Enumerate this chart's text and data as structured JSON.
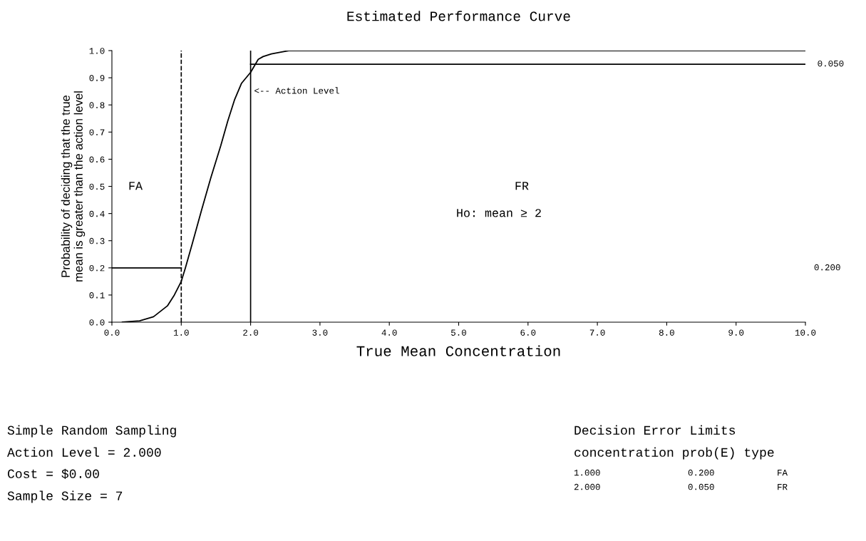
{
  "chart_data": {
    "type": "line",
    "title": "Estimated Performance Curve",
    "xlabel": "True Mean Concentration",
    "ylabel": "Probability of deciding that the true\nmean is greater than the action level",
    "series": [
      {
        "color": "#000000",
        "x": [
          0.15,
          0.4,
          0.6,
          0.8,
          0.9,
          1.0,
          1.06,
          1.16,
          1.29,
          1.43,
          1.57,
          1.67,
          1.77,
          1.87,
          2.0,
          2.11,
          2.18,
          2.3,
          2.45,
          2.55,
          3.0,
          10.0
        ],
        "values": [
          0.0,
          0.005,
          0.02,
          0.06,
          0.1,
          0.15,
          0.2,
          0.29,
          0.41,
          0.535,
          0.65,
          0.74,
          0.82,
          0.88,
          0.92,
          0.968,
          0.978,
          0.988,
          0.995,
          1.0,
          1.0,
          1.0
        ]
      },
      {
        "color": "#000000",
        "x": [
          0,
          1
        ],
        "values": [
          0.2,
          0.2
        ]
      },
      {
        "color": "#000000",
        "x": [
          2,
          10
        ],
        "values": [
          0.95,
          0.95
        ]
      }
    ],
    "ref_lines": [
      {
        "axis": "x",
        "value": 1,
        "line_style": "dashed",
        "color": "#000000"
      },
      {
        "axis": "x",
        "value": 2,
        "line_style": "solid",
        "color": "#000000"
      }
    ],
    "xlim": [
      0,
      10
    ],
    "ylim": [
      0,
      1
    ],
    "xticks": [
      {
        "value": 0,
        "label": "0.0"
      },
      {
        "value": 1,
        "label": "1.0"
      },
      {
        "value": 2,
        "label": "2.0"
      },
      {
        "value": 3,
        "label": "3.0"
      },
      {
        "value": 4,
        "label": "4.0"
      },
      {
        "value": 5,
        "label": "5.0"
      },
      {
        "value": 6,
        "label": "6.0"
      },
      {
        "value": 7,
        "label": "7.0"
      },
      {
        "value": 8,
        "label": "8.0"
      },
      {
        "value": 9,
        "label": "9.0"
      },
      {
        "value": 10,
        "label": "10.0"
      }
    ],
    "yticks": [
      {
        "value": 0,
        "label": "0.0"
      },
      {
        "value": 0.1,
        "label": "0.1"
      },
      {
        "value": 0.2,
        "label": "0.2"
      },
      {
        "value": 0.3,
        "label": "0.3"
      },
      {
        "value": 0.4,
        "label": "0.4"
      },
      {
        "value": 0.5,
        "label": "0.5"
      },
      {
        "value": 0.6,
        "label": "0.6"
      },
      {
        "value": 0.7,
        "label": "0.7"
      },
      {
        "value": 0.8,
        "label": "0.8"
      },
      {
        "value": 0.9,
        "label": "0.9"
      },
      {
        "value": 1,
        "label": "1.0"
      }
    ],
    "grid": false,
    "legend": false,
    "marker": "none",
    "line_style": "solid",
    "annotations": [
      {
        "text": "<-- Action Level",
        "x": 2.05,
        "y": 0.85
      },
      {
        "text": "0.050",
        "x": 10,
        "y": 0.95
      },
      "FA",
      "FR",
      "Ho: mean ≥ 2",
      "0.200",
      "Simple Random Sampling",
      "Action Level = 2.000",
      "Cost = $0.00",
      "Sample Size = 7",
      "Decision Error Limits",
      "concentration prob(E) type",
      "1.000",
      "0.200",
      "FA",
      "2.000",
      "0.050",
      "FR"
    ]
  }
}
